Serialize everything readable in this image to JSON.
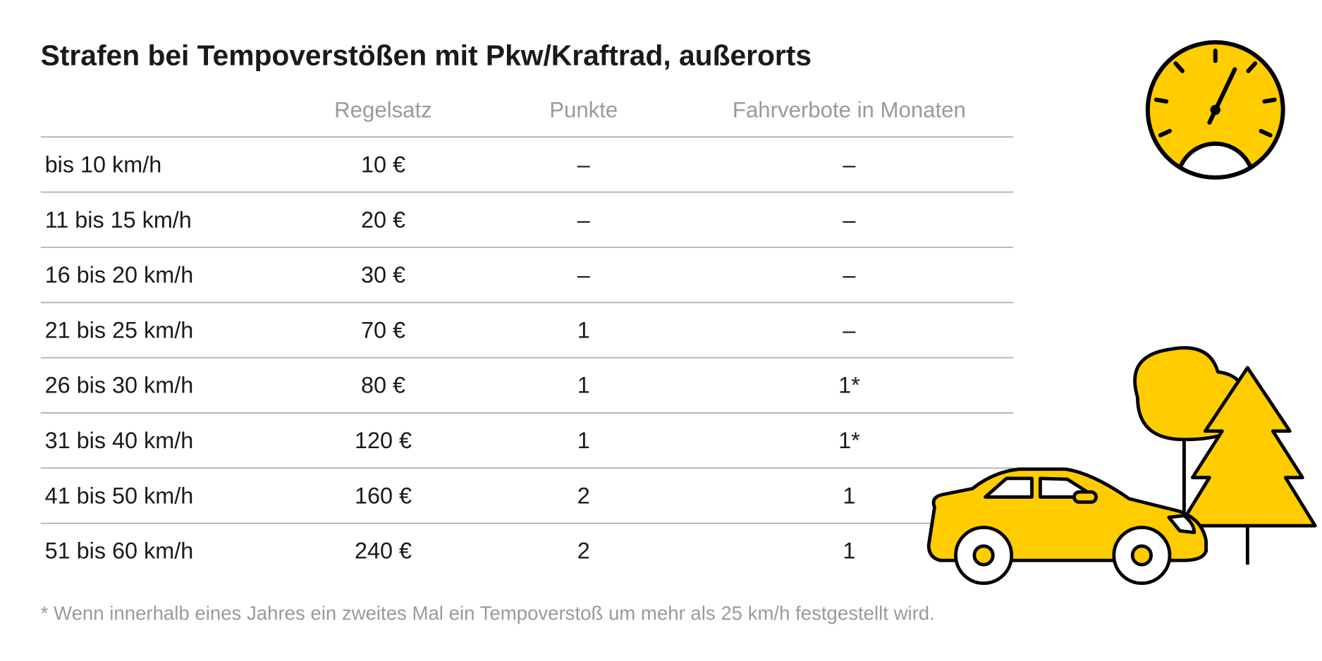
{
  "title": "Strafen bei Tempoverstößen mit Pkw/Kraftrad, außerorts",
  "table": {
    "headers": [
      "Regelsatz",
      "Punkte",
      "Fahrverbote in Monaten"
    ],
    "rows": [
      [
        "bis 10 km/h",
        "10 €",
        "–",
        "–"
      ],
      [
        "11 bis 15 km/h",
        "20 €",
        "–",
        "–"
      ],
      [
        "16 bis 20 km/h",
        "30 €",
        "–",
        "–"
      ],
      [
        "21 bis 25 km/h",
        "70 €",
        "1",
        "–"
      ],
      [
        "26 bis 30 km/h",
        "80 €",
        "1",
        "1*"
      ],
      [
        "31 bis 40 km/h",
        "120 €",
        "1",
        "1*"
      ],
      [
        "41 bis 50 km/h",
        "160 €",
        "2",
        "1"
      ],
      [
        "51 bis 60 km/h",
        "240 €",
        "2",
        "1"
      ]
    ]
  },
  "footnote": "* Wenn innerhalb eines Jahres ein zweites Mal ein Tempoverstoß um mehr als 25 km/h festgestellt wird."
}
